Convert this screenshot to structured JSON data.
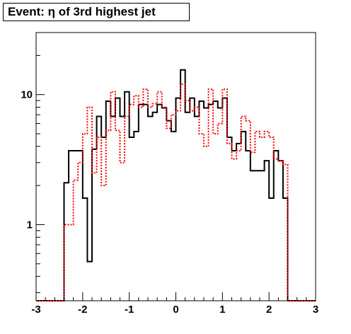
{
  "title": "Event: η of 3rd highest jet",
  "chart_data": {
    "type": "step-histogram",
    "title": "Event: η of 3rd highest jet",
    "xlabel": "",
    "ylabel": "",
    "xlim": [
      -3,
      3
    ],
    "ylim": [
      0.26,
      30
    ],
    "yscale": "log",
    "x_ticks": [
      "-3",
      "-2",
      "-1",
      "0",
      "1",
      "2",
      "3"
    ],
    "y_ticks": [
      "1",
      "10"
    ],
    "bins": {
      "min": -3,
      "max": 3,
      "n": 60
    },
    "series": [
      {
        "color": "#000000",
        "style": "solid",
        "values": [
          0,
          0,
          0,
          0,
          0,
          0,
          2.1,
          3.7,
          3.7,
          3.7,
          1.6,
          0.52,
          3.8,
          6.8,
          4.7,
          8.9,
          6.8,
          9.4,
          6.8,
          10.5,
          4.7,
          5.2,
          8.4,
          8.4,
          6.8,
          7.3,
          8.4,
          7.9,
          6.3,
          5.2,
          9.4,
          15.5,
          7.3,
          9.4,
          6.8,
          8.9,
          7.9,
          8.4,
          8.9,
          7.9,
          9.4,
          4.7,
          3.7,
          4.2,
          5.2,
          3.7,
          2.6,
          2.6,
          2.6,
          3.1,
          1.6,
          3.7,
          3.1,
          1.6,
          0,
          0,
          0,
          0,
          0,
          0
        ]
      },
      {
        "color": "#ff0000",
        "style": "dotted",
        "values": [
          0,
          0,
          0,
          0,
          0,
          0,
          1.0,
          1.0,
          2.2,
          3.0,
          5.0,
          8.0,
          2.5,
          4.7,
          2.0,
          5.3,
          10.5,
          5.3,
          3.0,
          6.8,
          8.4,
          9.8,
          8.0,
          11.0,
          8.0,
          8.5,
          10.5,
          8.0,
          5.5,
          7.0,
          7.5,
          12.0,
          9.0,
          7.5,
          8.0,
          5.0,
          4.0,
          11.0,
          5.0,
          6.0,
          11.0,
          4.2,
          3.2,
          3.7,
          6.8,
          6.3,
          3.6,
          5.2,
          4.7,
          5.2,
          4.7,
          3.2,
          3.1,
          2.9,
          0,
          0,
          0,
          0,
          0,
          0
        ]
      }
    ],
    "grid": false,
    "legend": "none"
  }
}
